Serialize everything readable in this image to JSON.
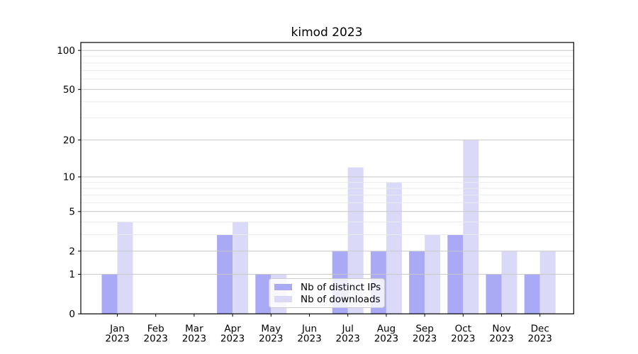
{
  "chart_data": {
    "type": "bar",
    "title": "kimod 2023",
    "categories": [
      "Jan",
      "Feb",
      "Mar",
      "Apr",
      "May",
      "Jun",
      "Jul",
      "Aug",
      "Sep",
      "Oct",
      "Nov",
      "Dec"
    ],
    "category_year": "2023",
    "series": [
      {
        "name": "Nb of distinct IPs",
        "color": "#a9a9f5",
        "values": [
          1,
          0,
          0,
          3,
          1,
          0,
          2,
          2,
          2,
          3,
          1,
          1
        ]
      },
      {
        "name": "Nb of downloads",
        "color": "#dadaf8",
        "values": [
          4,
          0,
          0,
          4,
          1,
          0,
          12,
          9,
          3,
          20,
          2,
          2
        ]
      }
    ],
    "xlabel": "",
    "ylabel": "",
    "scale": "log1p",
    "ylim": [
      0,
      115
    ],
    "y_ticks_major": [
      0,
      1,
      2,
      5,
      10,
      20,
      50,
      100
    ],
    "y_ticks_minor": [
      3,
      4,
      6,
      7,
      8,
      9,
      30,
      40,
      60,
      70,
      80,
      90
    ],
    "grid": "both",
    "legend_position": "lower center-left",
    "colors": {
      "background": "#ffffff",
      "major_grid": "#c7c7c7",
      "minor_grid": "#ebebeb",
      "spine": "#000000",
      "text": "#000000"
    }
  }
}
